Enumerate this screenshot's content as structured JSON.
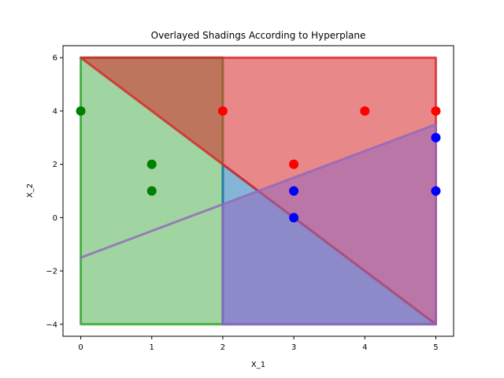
{
  "chart_data": {
    "type": "scatter",
    "title": "Overlayed Shadings According to Hyperplane",
    "xlabel": "X_1",
    "ylabel": "X_2",
    "xlim": [
      -0.25,
      5.25
    ],
    "ylim": [
      -4.45,
      6.45
    ],
    "xticks": [
      0,
      1,
      2,
      3,
      4,
      5
    ],
    "yticks": [
      -4,
      -2,
      0,
      2,
      4,
      6
    ],
    "grid": false,
    "regions": [
      {
        "color": "#2ca02c",
        "opacity": 0.45,
        "polygon": [
          [
            0,
            -4
          ],
          [
            2,
            -4
          ],
          [
            2,
            6
          ],
          [
            0,
            6
          ]
        ]
      },
      {
        "color": "#1f77b4",
        "opacity": 0.55,
        "polygon": [
          [
            2,
            -4
          ],
          [
            5,
            -4
          ],
          [
            2,
            2
          ]
        ]
      },
      {
        "color": "#d62728",
        "opacity": 0.55,
        "polygon": [
          [
            0,
            6
          ],
          [
            5,
            6
          ],
          [
            5,
            -4
          ]
        ]
      },
      {
        "color": "#9467bd",
        "opacity": 0.55,
        "polygon": [
          [
            0,
            -1.5
          ],
          [
            5,
            3.5
          ],
          [
            5,
            -4
          ],
          [
            2,
            -4
          ],
          [
            2,
            0.5
          ]
        ]
      }
    ],
    "series": [
      {
        "color": "#008000",
        "points": [
          [
            0,
            4
          ],
          [
            1,
            2
          ],
          [
            1,
            1
          ]
        ]
      },
      {
        "color": "#ff0000",
        "points": [
          [
            2,
            4
          ],
          [
            4,
            4
          ],
          [
            5,
            4
          ],
          [
            3,
            2
          ]
        ]
      },
      {
        "color": "#0000ff",
        "points": [
          [
            5,
            3
          ],
          [
            3,
            1
          ],
          [
            5,
            1
          ],
          [
            3,
            0
          ]
        ]
      }
    ]
  }
}
